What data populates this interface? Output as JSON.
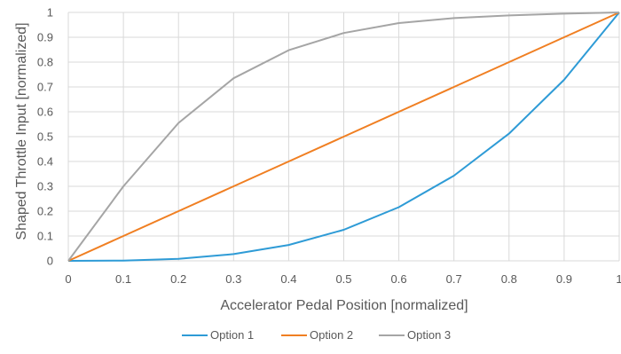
{
  "chart_data": {
    "type": "line",
    "title": "",
    "xlabel": "Accelerator Pedal Position [normalized]",
    "ylabel": "Shaped Throttle Input [normalized]",
    "xlim": [
      0,
      1
    ],
    "ylim": [
      0,
      1
    ],
    "x_ticks": [
      "0",
      "0.1",
      "0.2",
      "0.3",
      "0.4",
      "0.5",
      "0.6",
      "0.7",
      "0.8",
      "0.9",
      "1"
    ],
    "y_ticks": [
      "0",
      "0.1",
      "0.2",
      "0.3",
      "0.4",
      "0.5",
      "0.6",
      "0.7",
      "0.8",
      "0.9",
      "1"
    ],
    "x": [
      0,
      0.1,
      0.2,
      0.3,
      0.4,
      0.5,
      0.6,
      0.7,
      0.8,
      0.9,
      1.0
    ],
    "grid": true,
    "legend_position": "bottom",
    "series": [
      {
        "name": "Option 1",
        "color": "#2E9BD6",
        "values": [
          0,
          0.001,
          0.008,
          0.027,
          0.064,
          0.125,
          0.216,
          0.343,
          0.512,
          0.729,
          1.0
        ]
      },
      {
        "name": "Option 2",
        "color": "#F07F22",
        "values": [
          0,
          0.1,
          0.2,
          0.3,
          0.4,
          0.5,
          0.6,
          0.7,
          0.8,
          0.9,
          1.0
        ]
      },
      {
        "name": "Option 3",
        "color": "#A5A5A5",
        "values": [
          0,
          0.3,
          0.555,
          0.735,
          0.848,
          0.917,
          0.957,
          0.977,
          0.988,
          0.995,
          1.0
        ]
      }
    ]
  }
}
